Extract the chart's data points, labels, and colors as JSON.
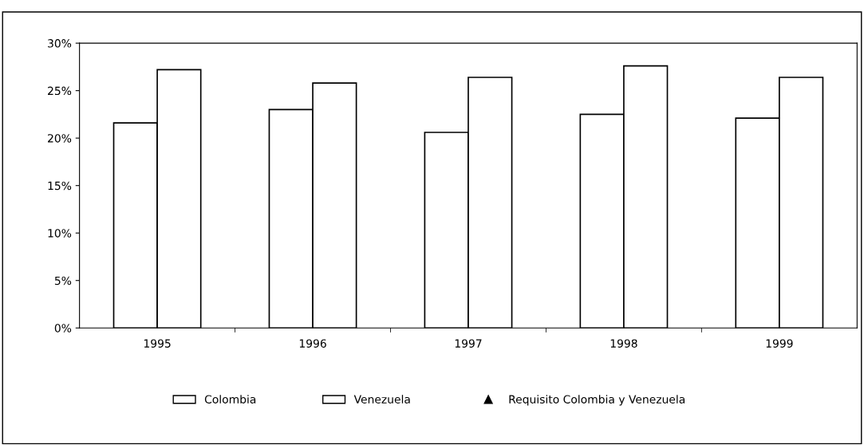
{
  "chart_data": {
    "type": "bar",
    "categories": [
      "1995",
      "1996",
      "1997",
      "1998",
      "1999"
    ],
    "series": [
      {
        "name": "Colombia",
        "color": "#ffffff",
        "values": [
          0.216,
          0.23,
          0.206,
          0.225,
          0.221
        ]
      },
      {
        "name": "Venezuela",
        "color": "#ffffff",
        "values": [
          0.272,
          0.258,
          0.264,
          0.276,
          0.264
        ]
      },
      {
        "name": "Requisito Colombia y Venezuela",
        "type": "scatter",
        "marker": "triangle",
        "color": "#000000",
        "values": [
          null,
          null,
          null,
          null,
          null
        ]
      }
    ],
    "ylim": [
      0,
      0.3
    ],
    "yticks": [
      {
        "value": 0,
        "label": "0%"
      },
      {
        "value": 0.05,
        "label": "5%"
      },
      {
        "value": 0.1,
        "label": "10%"
      },
      {
        "value": 0.15,
        "label": "15%"
      },
      {
        "value": 0.2,
        "label": "20%"
      },
      {
        "value": 0.25,
        "label": "25%"
      },
      {
        "value": 0.3,
        "label": "30%"
      }
    ],
    "grid": false,
    "legend": "bottom"
  }
}
